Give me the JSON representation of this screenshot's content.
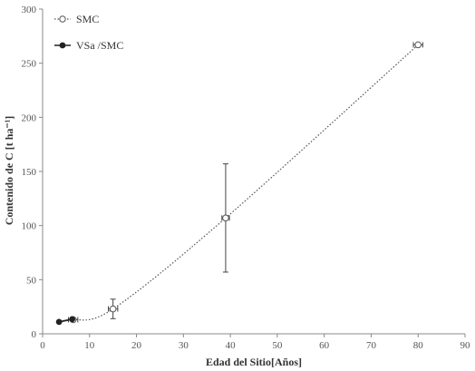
{
  "chart_data": {
    "type": "scatter",
    "xlabel": "Edad del Sitio[Años]",
    "ylabel": "Contenido de C [t ha⁻¹]",
    "xlim": [
      0,
      90
    ],
    "ylim": [
      0,
      300
    ],
    "x_ticks": [
      "0",
      "10",
      "20",
      "30",
      "40",
      "50",
      "60",
      "70",
      "80",
      "90"
    ],
    "y_ticks": [
      "0",
      "50",
      "100",
      "150",
      "200",
      "250",
      "300"
    ],
    "grid": false,
    "legend_position": "top-left",
    "series": [
      {
        "name": "SMC",
        "marker": "open-circle",
        "line": "dotted",
        "color": "#555555",
        "points": [
          {
            "x": 6.5,
            "y": 13,
            "xerr": 1.0,
            "yerr": 1
          },
          {
            "x": 15,
            "y": 23,
            "xerr": 1.0,
            "yerr": 9
          },
          {
            "x": 39,
            "y": 107,
            "xerr": 0.8,
            "yerr": 50
          },
          {
            "x": 80,
            "y": 267,
            "xerr": 1.0,
            "yerr": 1
          }
        ]
      },
      {
        "name": "VSa /SMC",
        "marker": "filled-circle",
        "line": "solid",
        "color": "#222222",
        "points": [
          {
            "x": 3.5,
            "y": 11
          },
          {
            "x": 6.3,
            "y": 13.5
          }
        ]
      }
    ]
  }
}
